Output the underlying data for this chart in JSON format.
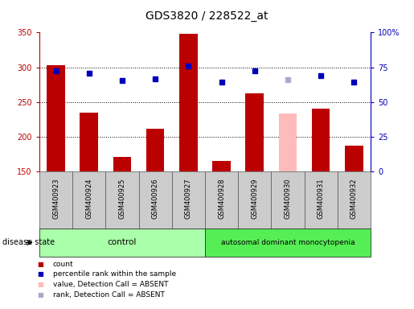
{
  "title": "GDS3820 / 228522_at",
  "samples": [
    "GSM400923",
    "GSM400924",
    "GSM400925",
    "GSM400926",
    "GSM400927",
    "GSM400928",
    "GSM400929",
    "GSM400930",
    "GSM400931",
    "GSM400932"
  ],
  "count_values": [
    303,
    235,
    171,
    212,
    348,
    165,
    262,
    null,
    240,
    187
  ],
  "count_absent": [
    null,
    null,
    null,
    null,
    null,
    null,
    null,
    233,
    null,
    null
  ],
  "rank_values": [
    295,
    291,
    281,
    283,
    302,
    279,
    295,
    null,
    288,
    279
  ],
  "rank_absent": [
    null,
    null,
    null,
    null,
    null,
    null,
    null,
    282,
    null,
    null
  ],
  "ylim_left": [
    150,
    350
  ],
  "ylim_right": [
    0,
    100
  ],
  "yticks_left": [
    150,
    200,
    250,
    300,
    350
  ],
  "yticks_right": [
    0,
    25,
    50,
    75,
    100
  ],
  "ytick_labels_right": [
    "0",
    "25",
    "50",
    "75",
    "100%"
  ],
  "control_count": 5,
  "disease_count": 5,
  "control_label": "control",
  "disease_label": "autosomal dominant monocytopenia",
  "bar_color_red": "#bb0000",
  "bar_color_pink": "#ffbbbb",
  "dot_color_blue": "#0000bb",
  "dot_color_lightblue": "#aaaacc",
  "bar_width": 0.55,
  "disease_state_label": "disease state",
  "legend_items": [
    "count",
    "percentile rank within the sample",
    "value, Detection Call = ABSENT",
    "rank, Detection Call = ABSENT"
  ],
  "legend_colors": [
    "#bb0000",
    "#0000bb",
    "#ffbbbb",
    "#aaaacc"
  ],
  "bg_plot": "#ffffff",
  "bg_ticklabel": "#cccccc",
  "bg_control": "#aaffaa",
  "bg_disease": "#55ee55",
  "fontsize_title": 10,
  "fontsize_ticks": 7,
  "fontsize_labels": 7
}
